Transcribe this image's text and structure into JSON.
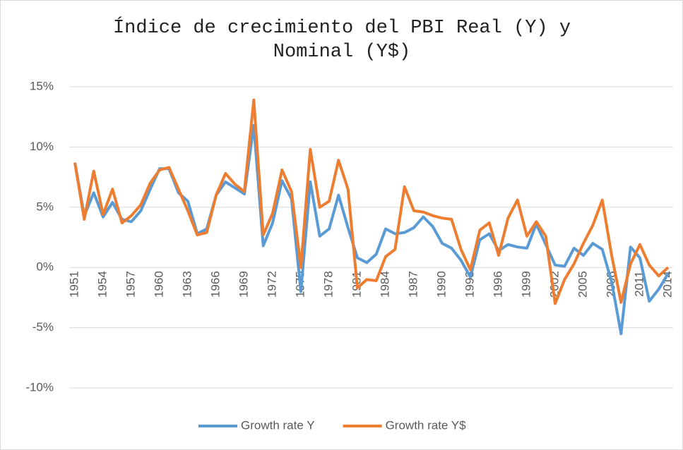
{
  "chart_data": {
    "type": "line",
    "title": "Índice de crecimiento del PBI Real (Y) y Nominal (Y$)",
    "categories": [
      "1951",
      null,
      null,
      "1954",
      null,
      null,
      "1957",
      null,
      null,
      "1960",
      null,
      null,
      "1963",
      null,
      null,
      "1966",
      null,
      null,
      "1969",
      null,
      null,
      "1972",
      null,
      null,
      "1975",
      null,
      null,
      "1978",
      null,
      null,
      "1981",
      null,
      null,
      "1984",
      null,
      null,
      "1987",
      null,
      null,
      "1990",
      null,
      null,
      "1993",
      null,
      null,
      "1996",
      null,
      null,
      "1999",
      null,
      null,
      "2002",
      null,
      null,
      "2005",
      null,
      null,
      "2008",
      null,
      null,
      "2011",
      null,
      null,
      "2014"
    ],
    "series": [
      {
        "name": "Growth rate Y",
        "color": "#5b9bd5",
        "values": [
          8.7,
          4.3,
          6.2,
          4.2,
          5.4,
          4.0,
          3.8,
          4.7,
          6.5,
          8.2,
          8.2,
          6.2,
          5.5,
          2.8,
          3.2,
          6.0,
          7.1,
          6.6,
          6.1,
          11.8,
          1.8,
          3.7,
          7.2,
          5.7,
          -2.0,
          7.1,
          2.6,
          3.2,
          6.0,
          3.3,
          0.8,
          0.4,
          1.1,
          3.2,
          2.8,
          2.9,
          3.3,
          4.2,
          3.4,
          2.0,
          1.6,
          0.6,
          -0.8,
          2.3,
          2.8,
          1.4,
          1.9,
          1.7,
          1.6,
          3.6,
          1.9,
          0.2,
          0.1,
          1.6,
          1.0,
          2.0,
          1.5,
          -1.2,
          -5.5,
          1.7,
          0.8,
          -2.8,
          -1.8,
          -0.5
        ]
      },
      {
        "name": "Growth rate Y$",
        "color": "#ed7d31",
        "values": [
          8.7,
          4.0,
          8.0,
          4.4,
          6.5,
          3.7,
          4.3,
          5.2,
          7.0,
          8.1,
          8.3,
          6.5,
          4.7,
          2.7,
          2.9,
          6.0,
          7.8,
          6.9,
          6.3,
          13.9,
          2.7,
          4.5,
          8.1,
          6.3,
          0.0,
          9.8,
          5.0,
          5.5,
          8.9,
          6.5,
          -1.7,
          -1.0,
          -1.1,
          0.9,
          1.5,
          6.7,
          4.7,
          4.6,
          4.3,
          4.1,
          4.0,
          1.5,
          -0.2,
          3.1,
          3.7,
          1.0,
          4.1,
          5.6,
          2.6,
          3.8,
          2.6,
          -3.0,
          -1.0,
          0.3,
          2.0,
          3.5,
          5.6,
          1.0,
          -2.9,
          0.3,
          1.9,
          0.2,
          -0.7,
          0.0
        ]
      }
    ],
    "ylim": [
      -10,
      15
    ],
    "yticks": [
      {
        "value": -10,
        "label": "-10%"
      },
      {
        "value": -5,
        "label": "-5%"
      },
      {
        "value": 0,
        "label": "0%"
      },
      {
        "value": 5,
        "label": "5%"
      },
      {
        "value": 10,
        "label": "10%"
      },
      {
        "value": 15,
        "label": "15%"
      }
    ],
    "grid": true,
    "legend": "bottom"
  }
}
